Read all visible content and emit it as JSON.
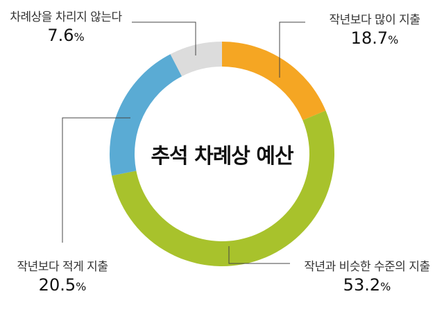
{
  "chart_data": {
    "type": "pie",
    "title": "추석 차례상 예산",
    "unit": "%",
    "slices": [
      {
        "label": "작년보다 많이 지출",
        "value": 18.7,
        "color": "#f5a623"
      },
      {
        "label": "작년과 비슷한 수준의 지출",
        "value": 53.2,
        "color": "#a8c22c"
      },
      {
        "label": "작년보다 적게 지출",
        "value": 20.5,
        "color": "#5aabd4"
      },
      {
        "label": "차례상을 차리지 않는다",
        "value": 7.6,
        "color": "#dcdcdc"
      }
    ]
  }
}
